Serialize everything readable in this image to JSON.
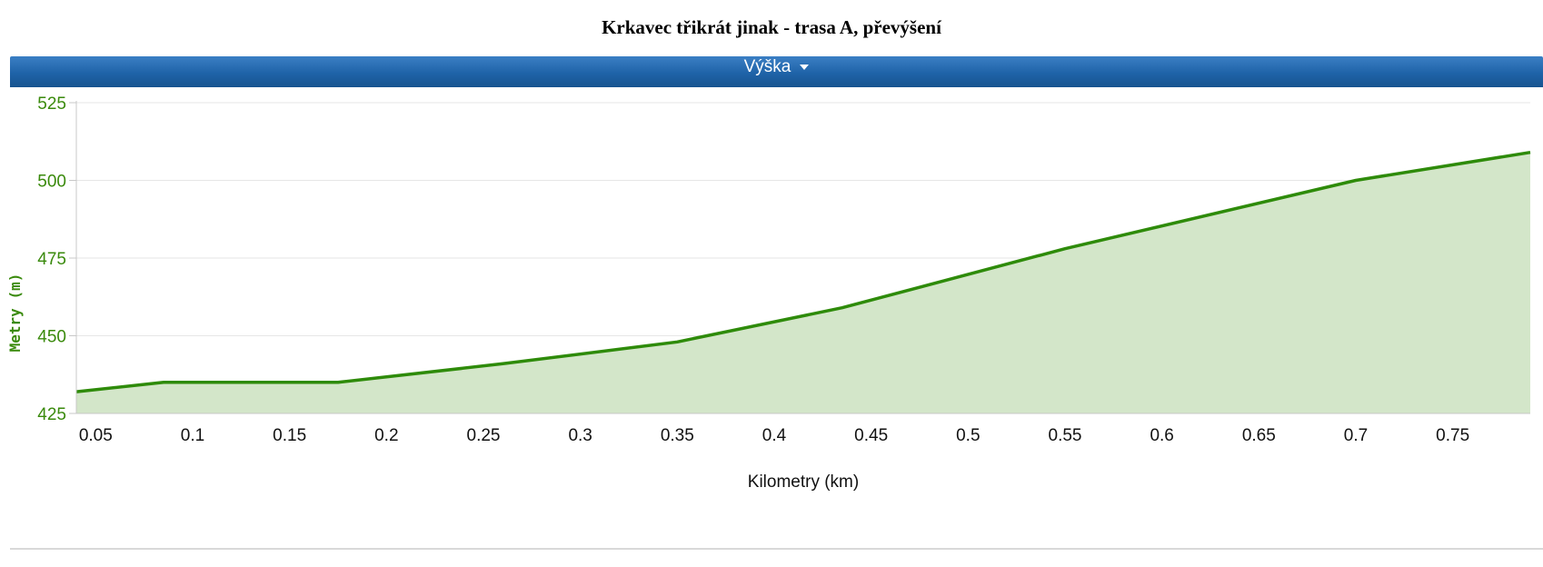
{
  "page": {
    "title": "Krkavec třikrát jinak - trasa A, převýšení"
  },
  "header": {
    "label": "Výška",
    "caret_icon": "caret-down-icon"
  },
  "colors": {
    "header": "#1f63a8",
    "line": "#2e8b0a",
    "fill": "#d3e6c9",
    "axis_text": "#3a8a0c",
    "grid": "#e6e6e6"
  },
  "chart_data": {
    "type": "area",
    "title": "",
    "xlabel": "Kilometry (km)",
    "ylabel": "Metry (m)",
    "xlim": [
      0.04,
      0.79
    ],
    "ylim": [
      425,
      525
    ],
    "x_ticks": [
      0.05,
      0.1,
      0.15,
      0.2,
      0.25,
      0.3,
      0.35,
      0.4,
      0.45,
      0.5,
      0.55,
      0.6,
      0.65,
      0.7,
      0.75
    ],
    "x_tick_labels": [
      "0.05",
      "0.1",
      "0.15",
      "0.2",
      "0.25",
      "0.3",
      "0.35",
      "0.4",
      "0.45",
      "0.5",
      "0.55",
      "0.6",
      "0.65",
      "0.7",
      "0.75"
    ],
    "y_ticks": [
      425,
      450,
      475,
      500,
      525
    ],
    "y_tick_labels": [
      "425",
      "450",
      "475",
      "500",
      "525"
    ],
    "grid": true,
    "series": [
      {
        "x": [
          0.04,
          0.085,
          0.175,
          0.26,
          0.35,
          0.435,
          0.55,
          0.7,
          0.79
        ],
        "y": [
          432,
          435,
          435,
          441,
          448,
          459,
          478,
          500,
          509
        ]
      }
    ]
  }
}
